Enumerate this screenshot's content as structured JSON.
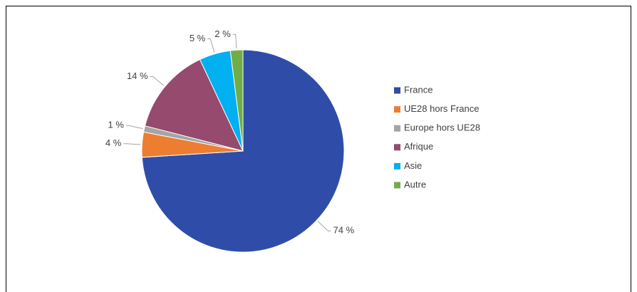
{
  "chart_data": {
    "type": "pie",
    "categories": [
      "France",
      "UE28 hors France",
      "Europe hors UE28",
      "Afrique",
      "Asie",
      "Autre"
    ],
    "values": [
      74,
      4,
      1,
      14,
      5,
      2
    ],
    "value_labels": [
      "74 %",
      "4 %",
      "1 %",
      "14 %",
      "5 %",
      "2 %"
    ],
    "colors": [
      "#2f4da8",
      "#ed7d31",
      "#a5a5a5",
      "#954a6e",
      "#00b0f0",
      "#70ad47"
    ],
    "legend": "right"
  }
}
